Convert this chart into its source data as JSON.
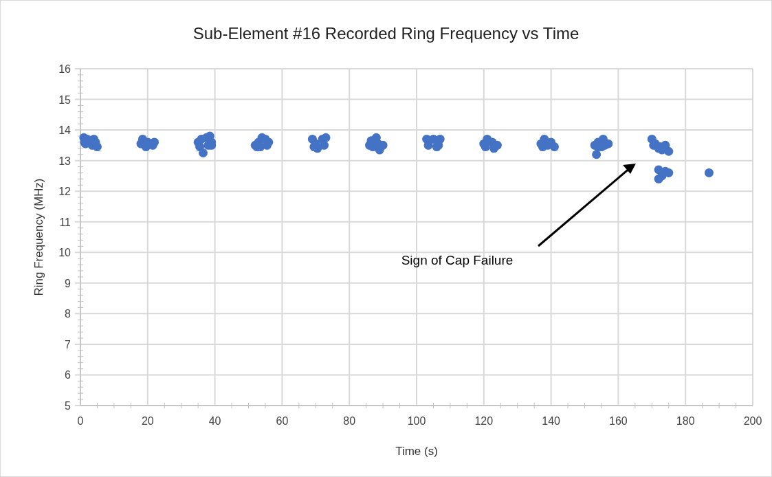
{
  "chart_data": {
    "type": "scatter",
    "title": "Sub-Element #16 Recorded Ring Frequency vs Time",
    "xlabel": "Time (s)",
    "ylabel": "Ring Frequency (MHz)",
    "xlim": [
      0,
      200
    ],
    "xticks": [
      0,
      20,
      40,
      60,
      80,
      100,
      120,
      140,
      160,
      180,
      200
    ],
    "ylim": [
      5,
      16
    ],
    "yticks": [
      5,
      6,
      7,
      8,
      9,
      10,
      11,
      12,
      13,
      14,
      15,
      16
    ],
    "grid": true,
    "marker": "circle",
    "series": [
      {
        "color": "#4472c4",
        "x": [
          1,
          1.5,
          2,
          3.5,
          4,
          4.5,
          5,
          1.2,
          18,
          18.5,
          20,
          22,
          19.5,
          21.5,
          35,
          35.5,
          36,
          37.5,
          38,
          38.5,
          39,
          36.5,
          39,
          52,
          52.5,
          53,
          54,
          55,
          56,
          53.5,
          55.5,
          69,
          69.5,
          70,
          72,
          72.5,
          73,
          70.5,
          86,
          86.5,
          87,
          88,
          88.5,
          89,
          90,
          103,
          103.5,
          105,
          106,
          107,
          106.5,
          120,
          120.5,
          121,
          122.5,
          123,
          124,
          137,
          137.5,
          138,
          139,
          140,
          141,
          153,
          153.5,
          154,
          155,
          155.5,
          156,
          157,
          154,
          170,
          170.5,
          171,
          172,
          172.5,
          173,
          174,
          175,
          172,
          173,
          174,
          175,
          172,
          187
        ],
        "values": [
          13.75,
          13.55,
          13.7,
          13.5,
          13.7,
          13.6,
          13.45,
          13.6,
          13.55,
          13.7,
          13.6,
          13.6,
          13.45,
          13.5,
          13.6,
          13.45,
          13.7,
          13.75,
          13.5,
          13.8,
          13.5,
          13.25,
          13.6,
          13.5,
          13.45,
          13.6,
          13.75,
          13.7,
          13.6,
          13.45,
          13.5,
          13.7,
          13.45,
          13.55,
          13.7,
          13.5,
          13.75,
          13.4,
          13.5,
          13.65,
          13.45,
          13.75,
          13.55,
          13.35,
          13.5,
          13.7,
          13.5,
          13.7,
          13.45,
          13.7,
          13.5,
          13.55,
          13.45,
          13.7,
          13.6,
          13.4,
          13.5,
          13.55,
          13.45,
          13.7,
          13.5,
          13.6,
          13.45,
          13.5,
          13.2,
          13.6,
          13.45,
          13.7,
          13.5,
          13.55,
          13.45,
          13.7,
          13.5,
          13.55,
          13.4,
          13.45,
          13.35,
          13.5,
          13.3,
          12.7,
          12.5,
          12.65,
          12.6,
          12.4,
          12.6
        ]
      }
    ],
    "annotations": [
      "Sign of Cap Failure"
    ]
  }
}
